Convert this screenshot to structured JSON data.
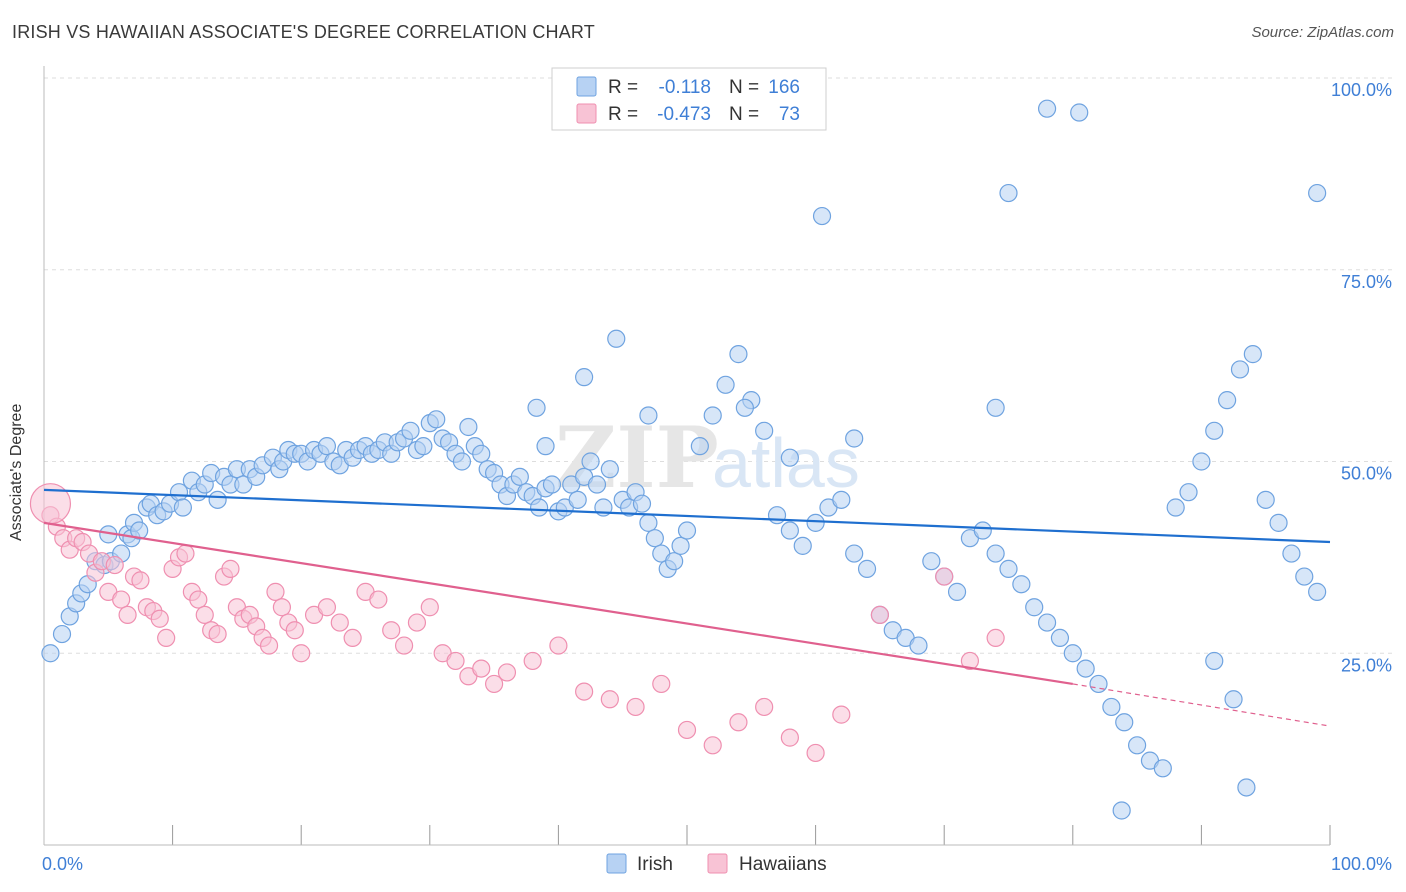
{
  "title": "IRISH VS HAWAIIAN ASSOCIATE'S DEGREE CORRELATION CHART",
  "source": "Source: ZipAtlas.com",
  "watermark": "ZIPatlas",
  "colors": {
    "irish": "#6fa3e0",
    "irish_fill": "#b7d2f3",
    "irish_line": "#1f6fcf",
    "hawaiians": "#ef8fb0",
    "hawaiians_fill": "#f8c3d5",
    "hawaiians_line": "#e0608e",
    "tick_label": "#3f7fd6",
    "grid": "#dddddd"
  },
  "legend": {
    "rows": [
      {
        "r_label": "R =",
        "r_value": "-0.118",
        "n_label": "N =",
        "n_value": "166"
      },
      {
        "r_label": "R =",
        "r_value": "-0.473",
        "n_label": "N =",
        "n_value": "73"
      }
    ]
  },
  "chart_data": {
    "type": "scatter",
    "title": "IRISH VS HAWAIIAN ASSOCIATE'S DEGREE CORRELATION CHART",
    "xlabel": "",
    "ylabel": "Associate's Degree",
    "xlim": [
      0,
      100
    ],
    "ylim": [
      0,
      100
    ],
    "x_tick_labels": [
      "0.0%",
      "100.0%"
    ],
    "y_tick_labels": [
      "100.0%",
      "75.0%",
      "50.0%",
      "25.0%"
    ],
    "y_ticks": [
      100,
      75,
      50,
      25
    ],
    "grid": true,
    "legend_position": "bottom-center",
    "series": [
      {
        "name": "Irish",
        "trend": {
          "x": [
            0,
            100
          ],
          "y": [
            46.3,
            39.5
          ]
        },
        "points": [
          [
            0.5,
            25.0
          ],
          [
            1.4,
            27.5
          ],
          [
            2.0,
            29.8
          ],
          [
            2.5,
            31.5
          ],
          [
            2.9,
            32.8
          ],
          [
            3.4,
            34.0
          ],
          [
            4.0,
            37.0
          ],
          [
            4.7,
            36.5
          ],
          [
            5.0,
            40.5
          ],
          [
            5.2,
            37.0
          ],
          [
            6.0,
            38.0
          ],
          [
            6.5,
            40.5
          ],
          [
            6.8,
            40.0
          ],
          [
            7.0,
            42.0
          ],
          [
            7.4,
            41.0
          ],
          [
            8.0,
            44.0
          ],
          [
            8.3,
            44.5
          ],
          [
            8.8,
            43.0
          ],
          [
            9.3,
            43.5
          ],
          [
            9.8,
            44.5
          ],
          [
            10.5,
            46.0
          ],
          [
            10.8,
            44.0
          ],
          [
            11.5,
            47.5
          ],
          [
            12.0,
            46.0
          ],
          [
            12.5,
            47.0
          ],
          [
            13.0,
            48.5
          ],
          [
            13.5,
            45.0
          ],
          [
            14.0,
            48.0
          ],
          [
            14.5,
            47.0
          ],
          [
            15.0,
            49.0
          ],
          [
            15.5,
            47.0
          ],
          [
            16.0,
            49.0
          ],
          [
            16.5,
            48.0
          ],
          [
            17.0,
            49.5
          ],
          [
            17.8,
            50.5
          ],
          [
            18.3,
            49.0
          ],
          [
            18.6,
            50.0
          ],
          [
            19.0,
            51.5
          ],
          [
            19.5,
            51.0
          ],
          [
            20.0,
            51.0
          ],
          [
            20.5,
            50.0
          ],
          [
            21.0,
            51.5
          ],
          [
            21.5,
            51.0
          ],
          [
            22.0,
            52.0
          ],
          [
            22.5,
            50.0
          ],
          [
            23.0,
            49.5
          ],
          [
            23.5,
            51.5
          ],
          [
            24.0,
            50.5
          ],
          [
            24.5,
            51.5
          ],
          [
            25.0,
            52.0
          ],
          [
            25.5,
            51.0
          ],
          [
            26.0,
            51.5
          ],
          [
            26.5,
            52.5
          ],
          [
            27.0,
            51.0
          ],
          [
            27.5,
            52.5
          ],
          [
            28.0,
            53.0
          ],
          [
            28.5,
            54.0
          ],
          [
            29.0,
            51.5
          ],
          [
            29.5,
            52.0
          ],
          [
            30.0,
            55.0
          ],
          [
            30.5,
            55.5
          ],
          [
            31.0,
            53.0
          ],
          [
            31.5,
            52.5
          ],
          [
            32.0,
            51.0
          ],
          [
            32.5,
            50.0
          ],
          [
            33.0,
            54.5
          ],
          [
            33.5,
            52.0
          ],
          [
            34.0,
            51.0
          ],
          [
            34.5,
            49.0
          ],
          [
            35.0,
            48.5
          ],
          [
            35.5,
            47.0
          ],
          [
            36.0,
            45.5
          ],
          [
            36.5,
            47.0
          ],
          [
            37.0,
            48.0
          ],
          [
            37.5,
            46.0
          ],
          [
            38.0,
            45.5
          ],
          [
            38.5,
            44.0
          ],
          [
            39.0,
            46.5
          ],
          [
            39.5,
            47.0
          ],
          [
            40.0,
            43.5
          ],
          [
            40.5,
            44.0
          ],
          [
            41.0,
            47.0
          ],
          [
            41.5,
            45.0
          ],
          [
            42.0,
            48.0
          ],
          [
            42.5,
            50.0
          ],
          [
            43.0,
            47.0
          ],
          [
            43.5,
            44.0
          ],
          [
            44.0,
            49.0
          ],
          [
            45.0,
            45.0
          ],
          [
            45.5,
            44.0
          ],
          [
            46.0,
            46.0
          ],
          [
            46.5,
            44.5
          ],
          [
            47.0,
            42.0
          ],
          [
            47.5,
            40.0
          ],
          [
            48.0,
            38.0
          ],
          [
            48.5,
            36.0
          ],
          [
            49.0,
            37.0
          ],
          [
            49.5,
            39.0
          ],
          [
            50.0,
            41.0
          ],
          [
            51.0,
            52.0
          ],
          [
            52.0,
            56.0
          ],
          [
            53.0,
            60.0
          ],
          [
            54.0,
            64.0
          ],
          [
            55.0,
            58.0
          ],
          [
            56.0,
            54.0
          ],
          [
            57.0,
            43.0
          ],
          [
            58.0,
            41.0
          ],
          [
            59.0,
            39.0
          ],
          [
            60.0,
            42.0
          ],
          [
            61.0,
            44.0
          ],
          [
            62.0,
            45.0
          ],
          [
            63.0,
            38.0
          ],
          [
            64.0,
            36.0
          ],
          [
            65.0,
            30.0
          ],
          [
            66.0,
            28.0
          ],
          [
            67.0,
            27.0
          ],
          [
            68.0,
            26.0
          ],
          [
            69.0,
            37.0
          ],
          [
            70.0,
            35.0
          ],
          [
            71.0,
            33.0
          ],
          [
            72.0,
            40.0
          ],
          [
            73.0,
            41.0
          ],
          [
            74.0,
            38.0
          ],
          [
            75.0,
            36.0
          ],
          [
            76.0,
            34.0
          ],
          [
            77.0,
            31.0
          ],
          [
            78.0,
            29.0
          ],
          [
            79.0,
            27.0
          ],
          [
            80.0,
            25.0
          ],
          [
            81.0,
            23.0
          ],
          [
            82.0,
            21.0
          ],
          [
            83.0,
            18.0
          ],
          [
            84.0,
            16.0
          ],
          [
            85.0,
            13.0
          ],
          [
            86.0,
            11.0
          ],
          [
            87.0,
            10.0
          ],
          [
            88.0,
            44.0
          ],
          [
            89.0,
            46.0
          ],
          [
            90.0,
            50.0
          ],
          [
            91.0,
            54.0
          ],
          [
            92.0,
            58.0
          ],
          [
            93.0,
            62.0
          ],
          [
            94.0,
            64.0
          ],
          [
            95.0,
            45.0
          ],
          [
            96.0,
            42.0
          ],
          [
            97.0,
            38.0
          ],
          [
            98.0,
            35.0
          ],
          [
            99.0,
            33.0
          ],
          [
            78.0,
            96.0
          ],
          [
            80.5,
            95.5
          ],
          [
            75.0,
            85.0
          ],
          [
            60.5,
            82.0
          ],
          [
            99.0,
            85.0
          ],
          [
            44.5,
            66.0
          ],
          [
            42.0,
            61.0
          ],
          [
            38.3,
            57.0
          ],
          [
            54.5,
            57.0
          ],
          [
            74.0,
            57.0
          ],
          [
            58.0,
            50.5
          ],
          [
            63.0,
            53.0
          ],
          [
            47.0,
            56.0
          ],
          [
            39.0,
            52.0
          ],
          [
            91.0,
            24.0
          ],
          [
            92.5,
            19.0
          ],
          [
            83.8,
            4.5
          ],
          [
            93.5,
            7.5
          ]
        ]
      },
      {
        "name": "Hawaiians",
        "trend": {
          "x": [
            0,
            80
          ],
          "y": [
            42.0,
            21.0
          ]
        },
        "trend_dashed": {
          "x": [
            80,
            100
          ],
          "y": [
            21.0,
            15.5
          ]
        },
        "points": [
          [
            0.5,
            43.0
          ],
          [
            1.0,
            41.5
          ],
          [
            1.5,
            40.0
          ],
          [
            2.0,
            38.5
          ],
          [
            2.5,
            40.0
          ],
          [
            3.0,
            39.5
          ],
          [
            3.5,
            38.0
          ],
          [
            4.0,
            35.5
          ],
          [
            4.5,
            37.0
          ],
          [
            5.0,
            33.0
          ],
          [
            5.5,
            36.5
          ],
          [
            6.0,
            32.0
          ],
          [
            6.5,
            30.0
          ],
          [
            7.0,
            35.0
          ],
          [
            7.5,
            34.5
          ],
          [
            8.0,
            31.0
          ],
          [
            8.5,
            30.5
          ],
          [
            9.0,
            29.5
          ],
          [
            9.5,
            27.0
          ],
          [
            10.0,
            36.0
          ],
          [
            10.5,
            37.5
          ],
          [
            11.0,
            38.0
          ],
          [
            11.5,
            33.0
          ],
          [
            12.0,
            32.0
          ],
          [
            12.5,
            30.0
          ],
          [
            13.0,
            28.0
          ],
          [
            13.5,
            27.5
          ],
          [
            14.0,
            35.0
          ],
          [
            14.5,
            36.0
          ],
          [
            15.0,
            31.0
          ],
          [
            15.5,
            29.5
          ],
          [
            16.0,
            30.0
          ],
          [
            16.5,
            28.5
          ],
          [
            17.0,
            27.0
          ],
          [
            17.5,
            26.0
          ],
          [
            18.0,
            33.0
          ],
          [
            18.5,
            31.0
          ],
          [
            19.0,
            29.0
          ],
          [
            19.5,
            28.0
          ],
          [
            20.0,
            25.0
          ],
          [
            21.0,
            30.0
          ],
          [
            22.0,
            31.0
          ],
          [
            23.0,
            29.0
          ],
          [
            24.0,
            27.0
          ],
          [
            25.0,
            33.0
          ],
          [
            26.0,
            32.0
          ],
          [
            27.0,
            28.0
          ],
          [
            28.0,
            26.0
          ],
          [
            29.0,
            29.0
          ],
          [
            30.0,
            31.0
          ],
          [
            31.0,
            25.0
          ],
          [
            32.0,
            24.0
          ],
          [
            33.0,
            22.0
          ],
          [
            34.0,
            23.0
          ],
          [
            35.0,
            21.0
          ],
          [
            36.0,
            22.5
          ],
          [
            38.0,
            24.0
          ],
          [
            40.0,
            26.0
          ],
          [
            42.0,
            20.0
          ],
          [
            44.0,
            19.0
          ],
          [
            46.0,
            18.0
          ],
          [
            48.0,
            21.0
          ],
          [
            50.0,
            15.0
          ],
          [
            52.0,
            13.0
          ],
          [
            54.0,
            16.0
          ],
          [
            56.0,
            18.0
          ],
          [
            58.0,
            14.0
          ],
          [
            60.0,
            12.0
          ],
          [
            62.0,
            17.0
          ],
          [
            65.0,
            30.0
          ],
          [
            70.0,
            35.0
          ],
          [
            72.0,
            24.0
          ],
          [
            74.0,
            27.0
          ]
        ]
      }
    ]
  }
}
